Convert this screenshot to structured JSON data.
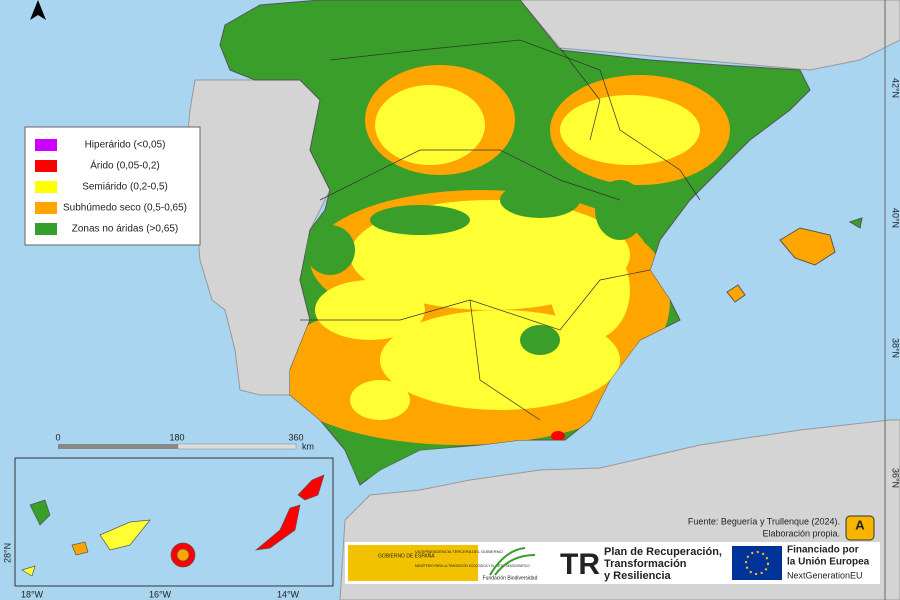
{
  "legend": [
    {
      "label": "Hiperárido (<0,05)",
      "color": "#cc00ff"
    },
    {
      "label": "Árido (0,05-0,2)",
      "color": "#ff0000"
    },
    {
      "label": "Semiárido (0,2-0,5)",
      "color": "#ffff00"
    },
    {
      "label": "Subhúmedo seco (0,5-0,65)",
      "color": "#ffa500"
    },
    {
      "label": "Zonas no áridas (>0,65)",
      "color": "#33a02c"
    }
  ],
  "scale_bar": {
    "ticks": [
      "0",
      "180",
      "360"
    ],
    "unit": "km"
  },
  "latitude_labels": [
    "42°N",
    "40°N",
    "38°N",
    "36°N"
  ],
  "inset": {
    "latitude_label": "28°N",
    "longitude_labels": [
      "18°W",
      "16°W",
      "14°W"
    ]
  },
  "source": {
    "line1": "Fuente: Beguería y Trullenque (2024).",
    "line2": "Elaboración propia.",
    "badge": "A"
  },
  "logos": {
    "gobierno": "GOBIERNO DE ESPAÑA",
    "vicepresidencia": "VICEPRESIDENCIA TERCERA DEL GOBIERNO",
    "ministerio": "MINISTERIO PARA LA TRANSICIÓN ECOLÓGICA Y EL RETO DEMOGRÁFICO",
    "fundacion": "Fundación Biodiversidad",
    "plan": [
      "Plan de Recuperación,",
      "Transformación",
      "y Resiliencia"
    ],
    "eu": [
      "Financiado por",
      "la Unión Europea"
    ],
    "nextgen": "NextGenerationEU"
  }
}
